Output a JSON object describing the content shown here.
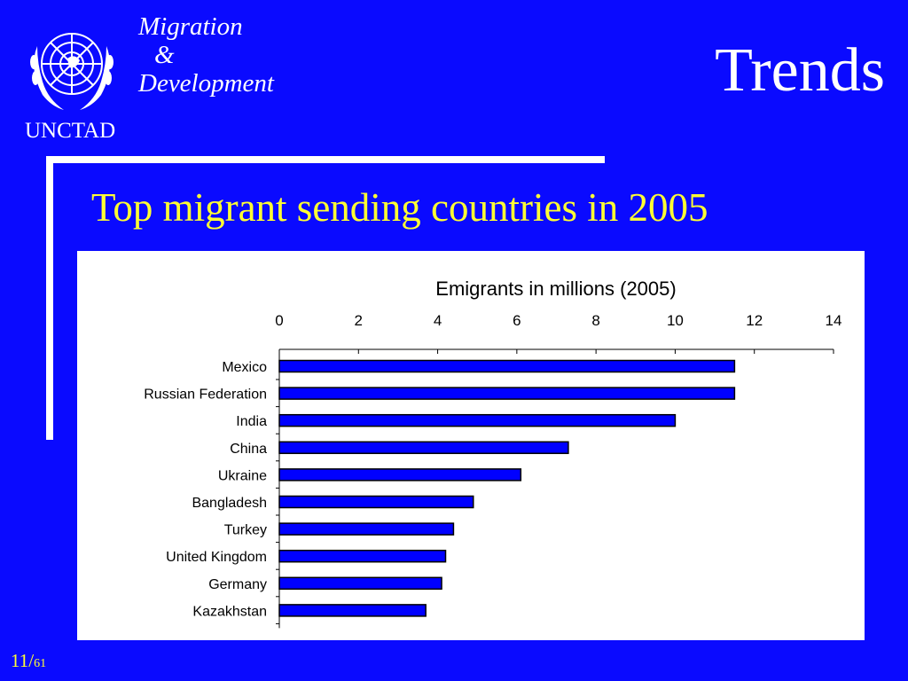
{
  "header": {
    "org": "UNCTAD",
    "brand_line1": "Migration",
    "brand_line2": "&",
    "brand_line3": "Development",
    "section_title": "Trends"
  },
  "slide": {
    "subtitle": "Top migrant sending countries in 2005",
    "page_current": "11/",
    "page_total": "61"
  },
  "colors": {
    "background": "#0a0aff",
    "bar_fill": "#0000ff",
    "subtitle": "#ffff33"
  },
  "chart_data": {
    "type": "bar",
    "orientation": "horizontal",
    "title": "Emigrants in millions (2005)",
    "categories": [
      "Mexico",
      "Russian Federation",
      "India",
      "China",
      "Ukraine",
      "Bangladesh",
      "Turkey",
      "United Kingdom",
      "Germany",
      "Kazakhstan"
    ],
    "values": [
      11.5,
      11.5,
      10.0,
      7.3,
      6.1,
      4.9,
      4.4,
      4.2,
      4.1,
      3.7
    ],
    "xlim": [
      0,
      14
    ],
    "xticks": [
      0,
      2,
      4,
      6,
      8,
      10,
      12,
      14
    ],
    "axis_position": "top",
    "grid": false,
    "legend": "none"
  }
}
